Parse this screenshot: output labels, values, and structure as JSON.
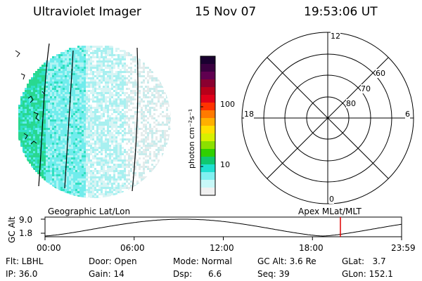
{
  "header": {
    "instrument": "Ultraviolet Imager",
    "date": "15 Nov 07",
    "time": "19:53:06 UT"
  },
  "colorbar": {
    "unit_label": "photon cm⁻²s⁻¹",
    "tick_labels": [
      "100",
      "10"
    ],
    "colors": [
      "#1a0030",
      "#3a0040",
      "#600050",
      "#8a0030",
      "#b8001a",
      "#e0001a",
      "#ff3300",
      "#ff7a00",
      "#ffb000",
      "#ffe000",
      "#d8f000",
      "#8ce000",
      "#30d000",
      "#10c870",
      "#20e0d0",
      "#80f0f0",
      "#c8f8f8",
      "#f0f0f0"
    ]
  },
  "polar_plot": {
    "hour_labels": {
      "top": "12",
      "left": "18",
      "right": "6",
      "bottom": "0"
    },
    "lat_labels": [
      "60",
      "70",
      "80"
    ]
  },
  "altitude_plot": {
    "left_label": "Geographic Lat/Lon",
    "right_label": "Apex MLat/MLT",
    "axis_title": "GC Alt",
    "y_ticks": [
      "9.0",
      "1.8"
    ],
    "x_ticks": [
      "00:00",
      "06:00",
      "12:00",
      "18:00",
      "23:59"
    ],
    "current_time_marker_hours": 19.88,
    "marker_color": "#e00000"
  },
  "footer": {
    "flt": "Flt: LBHL",
    "door": "Door: Open",
    "mode": "Mode: Normal",
    "gc_alt": "GC Alt: 3.6 Re",
    "glat": "GLat:   3.7",
    "ip": "IP: 36.0",
    "gain": "Gain: 14",
    "dsp": "Dsp:      6.6",
    "seq": "Seq: 39",
    "glon": "GLon: 152.1"
  }
}
